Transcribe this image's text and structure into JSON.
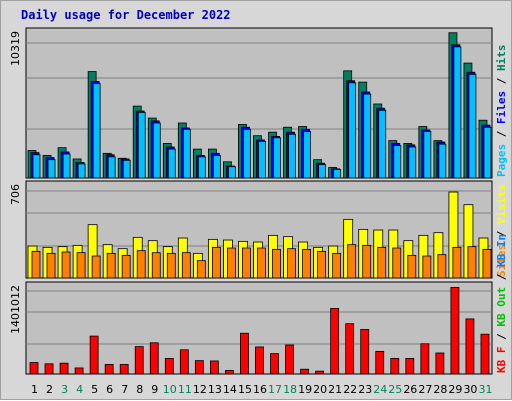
{
  "title": "Daily usage for December 2022",
  "colors": {
    "hits": "#008060",
    "files": "#0000ff",
    "pages": "#00c0ff",
    "visits": "#ffff00",
    "sites": "#ff8000",
    "kbin": "#0080ff",
    "kbout": "#00c000",
    "kbf": "#ff0000",
    "day_weekday": "#000000",
    "day_weekend": "#00805c"
  },
  "chart_data": [
    {
      "type": "bar",
      "panel": "hits-files-pages",
      "ymax_label": "10319",
      "ylim": [
        0,
        10319
      ],
      "grid": true,
      "legend": [
        {
          "key": "pages",
          "label": "Pages"
        },
        {
          "key": "files",
          "label": "Files"
        },
        {
          "key": "hits",
          "label": "Hits"
        }
      ],
      "categories": [
        "1",
        "2",
        "3",
        "4",
        "5",
        "6",
        "7",
        "8",
        "9",
        "10",
        "11",
        "12",
        "13",
        "14",
        "15",
        "16",
        "17",
        "18",
        "19",
        "20",
        "21",
        "22",
        "23",
        "24",
        "25",
        "26",
        "27",
        "28",
        "29",
        "30",
        "31"
      ],
      "series": [
        {
          "name": "Hits",
          "values": [
            1950,
            1600,
            2150,
            1350,
            7550,
            1750,
            1400,
            5100,
            4250,
            2450,
            3900,
            2050,
            2050,
            1150,
            3800,
            3000,
            3250,
            3600,
            3650,
            1300,
            750,
            7600,
            6800,
            5250,
            2650,
            2450,
            3650,
            2650,
            10300,
            8150,
            4100
          ]
        },
        {
          "name": "Files",
          "values": [
            1800,
            1450,
            1850,
            1100,
            6850,
            1650,
            1350,
            4750,
            4050,
            2200,
            3550,
            1600,
            1750,
            850,
            3600,
            2700,
            2950,
            3250,
            3450,
            1050,
            650,
            6900,
            6100,
            4950,
            2450,
            2350,
            3400,
            2550,
            9450,
            7500,
            3750
          ]
        },
        {
          "name": "Pages",
          "values": [
            1650,
            1300,
            1700,
            1000,
            6700,
            1500,
            1250,
            4650,
            3900,
            2050,
            3450,
            1500,
            1600,
            800,
            3450,
            2600,
            2850,
            3100,
            3300,
            950,
            600,
            6750,
            5950,
            4800,
            2300,
            2200,
            3300,
            2400,
            9300,
            7350,
            3600
          ]
        }
      ]
    },
    {
      "type": "bar",
      "panel": "visits-sites",
      "ymax_label": "706",
      "ylim": [
        0,
        706
      ],
      "grid": true,
      "legend": [
        {
          "key": "sites",
          "label": "Sites"
        },
        {
          "key": "visits",
          "label": "Visits"
        }
      ],
      "categories": [
        "1",
        "2",
        "3",
        "4",
        "5",
        "6",
        "7",
        "8",
        "9",
        "10",
        "11",
        "12",
        "13",
        "14",
        "15",
        "16",
        "17",
        "18",
        "19",
        "20",
        "21",
        "22",
        "23",
        "24",
        "25",
        "26",
        "27",
        "28",
        "29",
        "30",
        "31"
      ],
      "series": [
        {
          "name": "Visits",
          "values": [
            240,
            230,
            235,
            245,
            400,
            250,
            220,
            305,
            280,
            235,
            300,
            185,
            290,
            285,
            275,
            270,
            320,
            310,
            270,
            230,
            240,
            440,
            365,
            360,
            360,
            280,
            320,
            340,
            645,
            550,
            300
          ]
        },
        {
          "name": "Sites",
          "values": [
            200,
            185,
            195,
            190,
            165,
            185,
            170,
            205,
            190,
            185,
            190,
            130,
            230,
            225,
            225,
            225,
            215,
            220,
            215,
            200,
            185,
            250,
            245,
            230,
            225,
            170,
            165,
            175,
            230,
            235,
            215
          ]
        }
      ]
    },
    {
      "type": "bar",
      "panel": "kbytes",
      "ymax_label": "1401012",
      "ylim": [
        0,
        1401012
      ],
      "grid": true,
      "legend": [
        {
          "key": "kbf",
          "label": "KB F"
        },
        {
          "key": "kbout",
          "label": "KB Out"
        },
        {
          "key": "kbin",
          "label": "KB In"
        }
      ],
      "categories": [
        "1",
        "2",
        "3",
        "4",
        "5",
        "6",
        "7",
        "8",
        "9",
        "10",
        "11",
        "12",
        "13",
        "14",
        "15",
        "16",
        "17",
        "18",
        "19",
        "20",
        "21",
        "22",
        "23",
        "24",
        "25",
        "26",
        "27",
        "28",
        "29",
        "30",
        "31"
      ],
      "series": [
        {
          "name": "KB F",
          "values": [
            180000,
            160000,
            170000,
            95000,
            595000,
            150000,
            150000,
            430000,
            490000,
            245000,
            380000,
            210000,
            205000,
            55000,
            640000,
            425000,
            320000,
            455000,
            75000,
            45000,
            1030000,
            790000,
            700000,
            355000,
            245000,
            245000,
            475000,
            330000,
            1360000,
            865000,
            625000
          ]
        }
      ]
    }
  ]
}
